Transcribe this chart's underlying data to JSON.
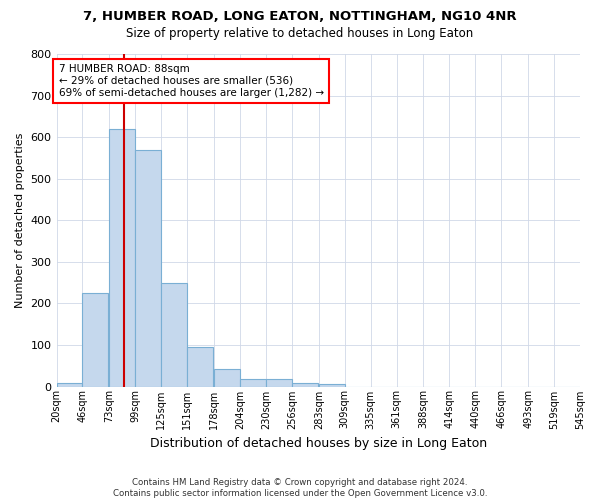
{
  "title1": "7, HUMBER ROAD, LONG EATON, NOTTINGHAM, NG10 4NR",
  "title2": "Size of property relative to detached houses in Long Eaton",
  "xlabel": "Distribution of detached houses by size in Long Eaton",
  "ylabel": "Number of detached properties",
  "footer1": "Contains HM Land Registry data © Crown copyright and database right 2024.",
  "footer2": "Contains public sector information licensed under the Open Government Licence v3.0.",
  "annotation_line1": "7 HUMBER ROAD: 88sqm",
  "annotation_line2": "← 29% of detached houses are smaller (536)",
  "annotation_line3": "69% of semi-detached houses are larger (1,282) →",
  "bar_color": "#c5d8ed",
  "bar_edge_color": "#7aafd4",
  "vline_color": "#cc0000",
  "vline_x": 88,
  "bins": [
    20,
    46,
    73,
    99,
    125,
    151,
    178,
    204,
    230,
    256,
    283,
    309,
    335,
    361,
    388,
    414,
    440,
    466,
    493,
    519,
    545
  ],
  "bin_labels": [
    "20sqm",
    "46sqm",
    "73sqm",
    "99sqm",
    "125sqm",
    "151sqm",
    "178sqm",
    "204sqm",
    "230sqm",
    "256sqm",
    "283sqm",
    "309sqm",
    "335sqm",
    "361sqm",
    "388sqm",
    "414sqm",
    "440sqm",
    "466sqm",
    "493sqm",
    "519sqm",
    "545sqm"
  ],
  "counts": [
    8,
    225,
    620,
    570,
    250,
    95,
    42,
    17,
    17,
    8,
    5,
    0,
    0,
    0,
    0,
    0,
    0,
    0,
    0,
    0
  ],
  "ylim": [
    0,
    800
  ],
  "yticks": [
    0,
    100,
    200,
    300,
    400,
    500,
    600,
    700,
    800
  ],
  "xlim": [
    20,
    545
  ],
  "background_color": "#ffffff",
  "grid_color": "#d0d8e8"
}
